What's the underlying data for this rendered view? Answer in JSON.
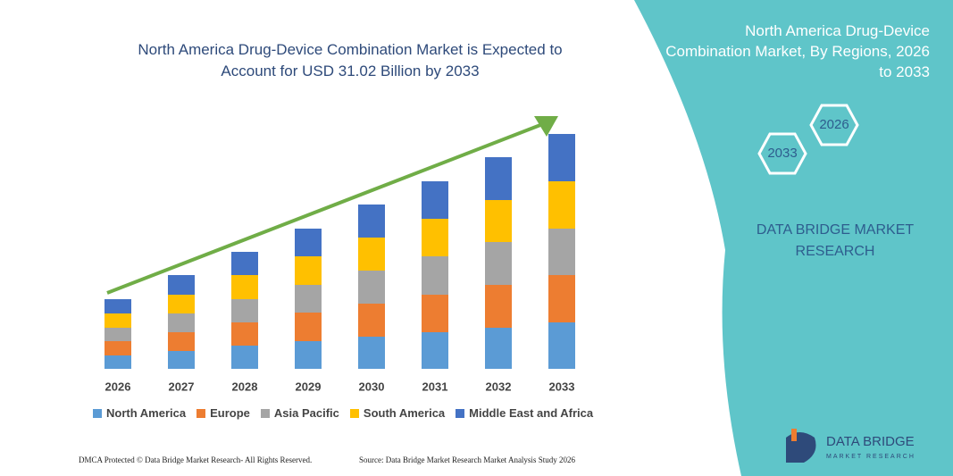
{
  "chart_data": {
    "type": "stacked_bar",
    "title": "North America Drug-Device Combination Market is Expected to Account for USD 31.02 Billion by 2033",
    "categories": [
      "2026",
      "2027",
      "2028",
      "2029",
      "2030",
      "2031",
      "2032",
      "2033"
    ],
    "series": [
      {
        "name": "North America",
        "color": "#5b9bd5",
        "values": [
          15,
          20,
          26,
          31,
          36,
          41,
          46,
          52
        ]
      },
      {
        "name": "Europe",
        "color": "#ed7d31",
        "values": [
          16,
          21,
          26,
          32,
          37,
          42,
          48,
          53
        ]
      },
      {
        "name": "Asia Pacific",
        "color": "#a5a5a5",
        "values": [
          15,
          21,
          26,
          31,
          37,
          43,
          48,
          52
        ]
      },
      {
        "name": "South America",
        "color": "#ffc000",
        "values": [
          16,
          21,
          27,
          32,
          37,
          42,
          47,
          53
        ]
      },
      {
        "name": "Middle East and Africa",
        "color": "#4472c4",
        "values": [
          16,
          22,
          26,
          31,
          37,
          42,
          48,
          53
        ]
      }
    ],
    "ylim": [
      0,
      270
    ],
    "grid": false
  },
  "panel": {
    "title": "North America Drug-Device Combination Market, By Regions, 2026 to 2033",
    "hex_start": "2026",
    "hex_end": "2033",
    "brand": "DATA BRIDGE MARKET RESEARCH"
  },
  "logo": {
    "name": "DATA BRIDGE",
    "tagline": "MARKET RESEARCH"
  },
  "footer": {
    "left": "DMCA Protected © Data Bridge Market Research- All Rights Reserved.",
    "right": "Source: Data Bridge Market Research Market Analysis Study 2026"
  }
}
